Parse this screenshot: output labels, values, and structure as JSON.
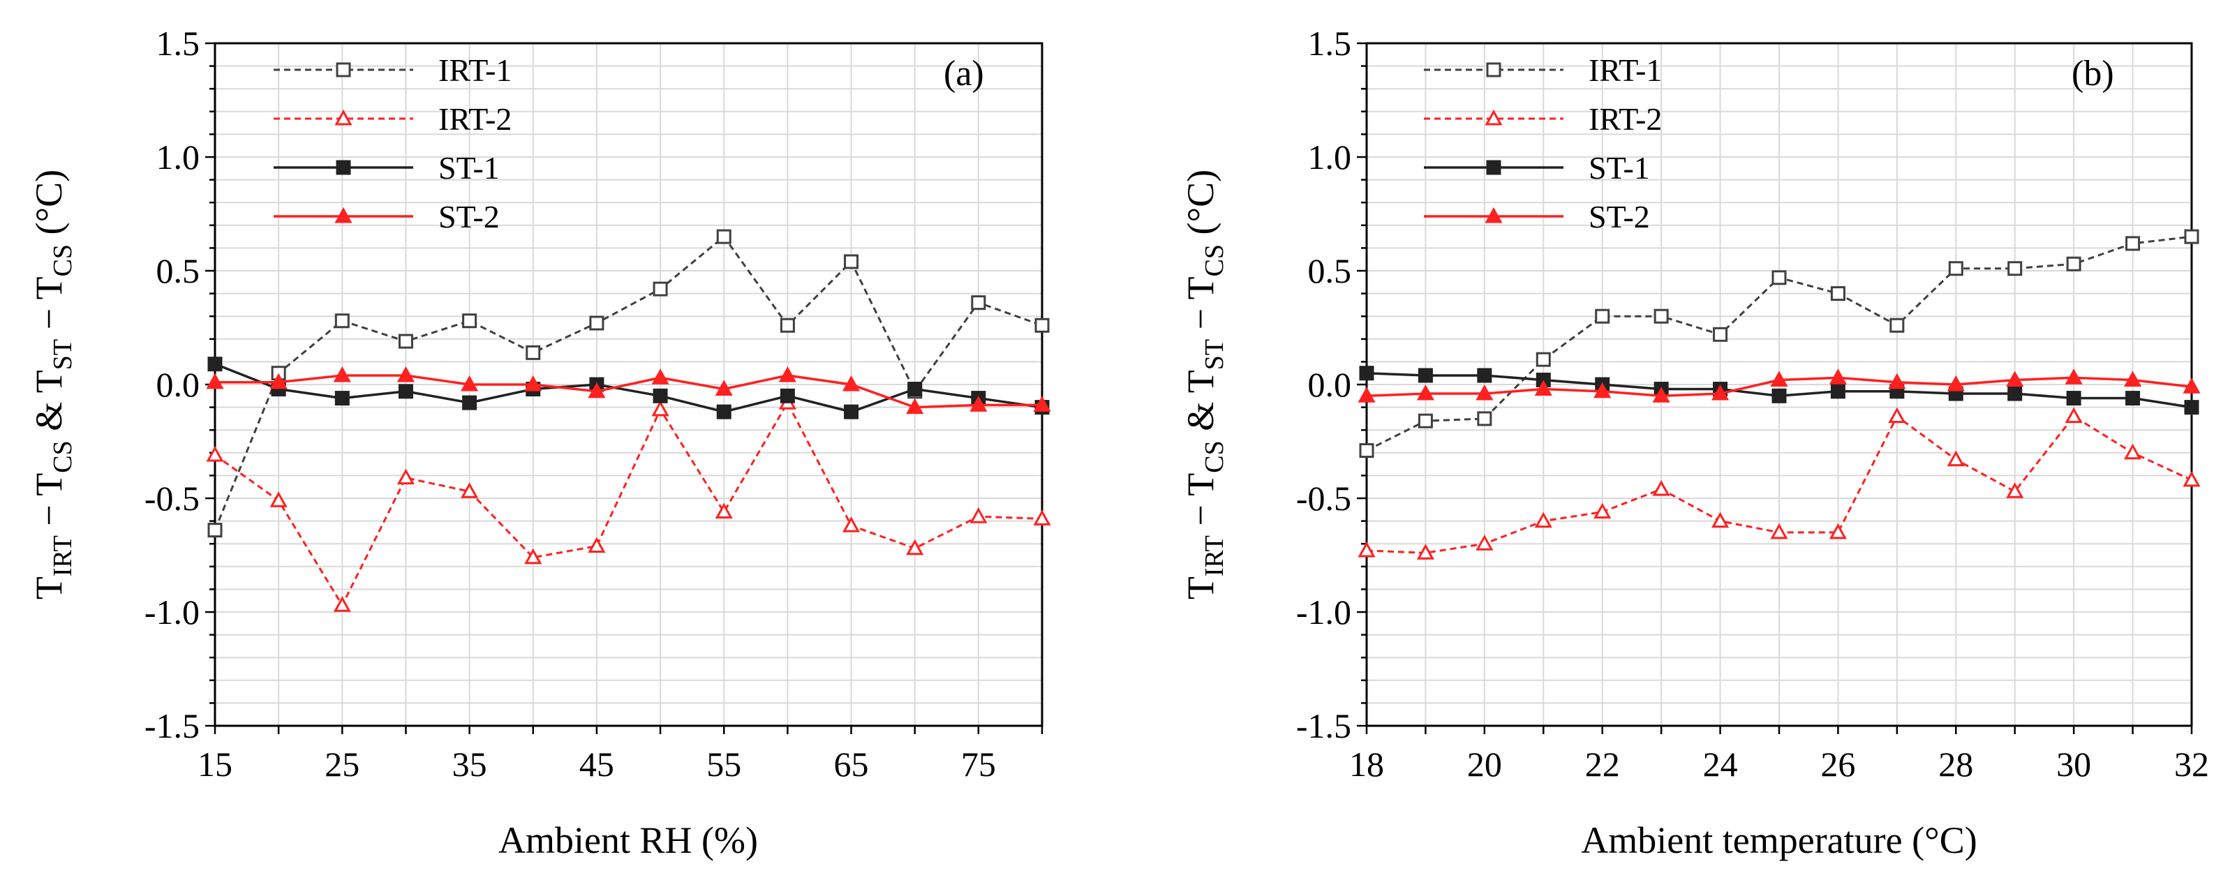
{
  "chart_data": [
    {
      "type": "line",
      "panel_label": "(a)",
      "xlabel": "Ambient RH (%)",
      "ylabel": {
        "T1": "T",
        "s1": "IRT",
        "m1": " − T",
        "s2": "CS",
        "m2": "  & T",
        "s3": "ST",
        "m3": " − T",
        "s4": "CS",
        "u": "  (°C)"
      },
      "xlim": [
        15,
        80
      ],
      "ylim": [
        -1.5,
        1.5
      ],
      "xticks": [
        15,
        25,
        35,
        45,
        55,
        65,
        75
      ],
      "xtick_labels": [
        "15",
        "25",
        "35",
        "45",
        "55",
        "65",
        "75"
      ],
      "yticks": [
        -1.5,
        -1.0,
        -0.5,
        0.0,
        0.5,
        1.0,
        1.5
      ],
      "ytick_labels": [
        "-1.5",
        "-1.0",
        "-0.5",
        "0.0",
        "0.5",
        "1.0",
        "1.5"
      ],
      "x_minor_step": 5,
      "y_minor_step": 0.1,
      "legend": "top-left",
      "x": [
        15,
        20,
        25,
        30,
        35,
        40,
        45,
        50,
        55,
        60,
        65,
        70,
        75,
        80
      ],
      "series": [
        {
          "name": "IRT-1",
          "color": "#404040",
          "dash": true,
          "marker": "square-open",
          "values": [
            -0.64,
            0.05,
            0.28,
            0.19,
            0.28,
            0.14,
            0.27,
            0.42,
            0.65,
            0.26,
            0.54,
            -0.03,
            0.36,
            0.26
          ]
        },
        {
          "name": "IRT-2",
          "color": "#ff2020",
          "dash": true,
          "marker": "triangle-open",
          "values": [
            -0.31,
            -0.51,
            -0.97,
            -0.41,
            -0.47,
            -0.76,
            -0.71,
            -0.11,
            -0.56,
            -0.08,
            -0.62,
            -0.72,
            -0.58,
            -0.59
          ]
        },
        {
          "name": "ST-1",
          "color": "#222222",
          "dash": false,
          "marker": "square-filled",
          "values": [
            0.09,
            -0.02,
            -0.06,
            -0.03,
            -0.08,
            -0.02,
            0.0,
            -0.05,
            -0.12,
            -0.05,
            -0.12,
            -0.02,
            -0.06,
            -0.1
          ]
        },
        {
          "name": "ST-2",
          "color": "#ff2020",
          "dash": false,
          "marker": "triangle-filled",
          "values": [
            0.01,
            0.01,
            0.04,
            0.04,
            0.0,
            0.0,
            -0.03,
            0.03,
            -0.02,
            0.04,
            0.0,
            -0.1,
            -0.09,
            -0.09
          ]
        }
      ]
    },
    {
      "type": "line",
      "panel_label": "(b)",
      "xlabel": "Ambient temperature (°C)",
      "ylabel": {
        "T1": "T",
        "s1": "IRT",
        "m1": " − T",
        "s2": "CS",
        "m2": "  & T",
        "s3": "ST",
        "m3": " − T",
        "s4": "CS",
        "u": "  (°C)"
      },
      "xlim": [
        18,
        32
      ],
      "ylim": [
        -1.5,
        1.5
      ],
      "xticks": [
        18,
        20,
        22,
        24,
        26,
        28,
        30,
        32
      ],
      "xtick_labels": [
        "18",
        "20",
        "22",
        "24",
        "26",
        "28",
        "30",
        "32"
      ],
      "yticks": [
        -1.5,
        -1.0,
        -0.5,
        0.0,
        0.5,
        1.0,
        1.5
      ],
      "ytick_labels": [
        "-1.5",
        "-1.0",
        "-0.5",
        "0.0",
        "0.5",
        "1.0",
        "1.5"
      ],
      "x_minor_step": 1,
      "y_minor_step": 0.1,
      "legend": "top-left",
      "x": [
        18,
        19,
        20,
        21,
        22,
        23,
        24,
        25,
        26,
        27,
        28,
        29,
        30,
        31,
        32
      ],
      "series": [
        {
          "name": "IRT-1",
          "color": "#404040",
          "dash": true,
          "marker": "square-open",
          "values": [
            -0.29,
            -0.16,
            -0.15,
            0.11,
            0.3,
            0.3,
            0.22,
            0.47,
            0.4,
            0.26,
            0.51,
            0.51,
            0.53,
            0.62,
            0.65
          ]
        },
        {
          "name": "IRT-2",
          "color": "#ff2020",
          "dash": true,
          "marker": "triangle-open",
          "values": [
            -0.73,
            -0.74,
            -0.7,
            -0.6,
            -0.56,
            -0.46,
            -0.6,
            -0.65,
            -0.65,
            -0.14,
            -0.33,
            -0.47,
            -0.14,
            -0.3,
            -0.42
          ]
        },
        {
          "name": "ST-1",
          "color": "#222222",
          "dash": false,
          "marker": "square-filled",
          "values": [
            0.05,
            0.04,
            0.04,
            0.02,
            0.0,
            -0.02,
            -0.02,
            -0.05,
            -0.03,
            -0.03,
            -0.04,
            -0.04,
            -0.06,
            -0.06,
            -0.1
          ]
        },
        {
          "name": "ST-2",
          "color": "#ff2020",
          "dash": false,
          "marker": "triangle-filled",
          "values": [
            -0.05,
            -0.04,
            -0.04,
            -0.02,
            -0.03,
            -0.05,
            -0.04,
            0.02,
            0.03,
            0.01,
            0.0,
            0.02,
            0.03,
            0.02,
            -0.01
          ]
        }
      ]
    }
  ]
}
